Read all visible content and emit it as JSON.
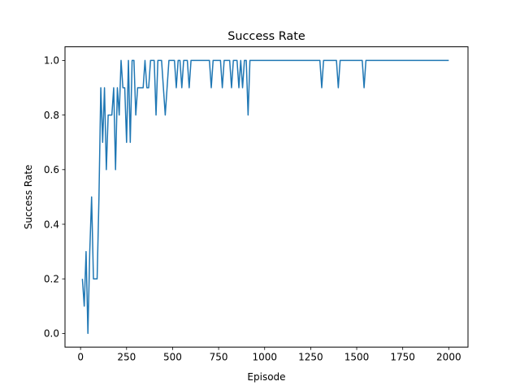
{
  "chart_data": {
    "type": "line",
    "title": "Success Rate",
    "xlabel": "Episode",
    "ylabel": "Success Rate",
    "xlim": [
      -84.5,
      2104.5
    ],
    "ylim": [
      -0.05,
      1.05
    ],
    "xticks": [
      0,
      250,
      500,
      750,
      1000,
      1250,
      1500,
      1750,
      2000
    ],
    "xtick_labels": [
      "0",
      "250",
      "500",
      "750",
      "1000",
      "1250",
      "1500",
      "1750",
      "2000"
    ],
    "yticks": [
      0.0,
      0.2,
      0.4,
      0.6,
      0.8,
      1.0
    ],
    "ytick_labels": [
      "0.0",
      "0.2",
      "0.4",
      "0.6",
      "0.8",
      "1.0"
    ],
    "grid": false,
    "legend": "none",
    "series": [
      {
        "color": "#1f77b4",
        "x": [
          10,
          20,
          30,
          40,
          50,
          60,
          70,
          80,
          90,
          100,
          110,
          120,
          130,
          140,
          150,
          160,
          170,
          180,
          190,
          200,
          210,
          220,
          230,
          240,
          250,
          260,
          270,
          280,
          290,
          300,
          310,
          320,
          330,
          340,
          350,
          360,
          370,
          380,
          390,
          400,
          410,
          420,
          430,
          440,
          450,
          460,
          470,
          480,
          490,
          500,
          510,
          520,
          530,
          540,
          550,
          560,
          570,
          580,
          590,
          600,
          650,
          700,
          710,
          720,
          760,
          770,
          780,
          800,
          810,
          820,
          830,
          840,
          850,
          860,
          870,
          880,
          890,
          900,
          910,
          920,
          1000,
          1100,
          1200,
          1300,
          1310,
          1320,
          1390,
          1400,
          1410,
          1450,
          1500,
          1530,
          1540,
          1550,
          1600,
          1700,
          1800,
          1900,
          2000
        ],
        "y": [
          0.2,
          0.1,
          0.3,
          0.0,
          0.3,
          0.5,
          0.2,
          0.2,
          0.2,
          0.5,
          0.9,
          0.7,
          0.9,
          0.6,
          0.8,
          0.8,
          0.8,
          0.9,
          0.6,
          0.9,
          0.8,
          1.0,
          0.9,
          0.9,
          0.7,
          1.0,
          0.7,
          1.0,
          1.0,
          0.8,
          0.9,
          0.9,
          0.9,
          0.9,
          1.0,
          0.9,
          0.9,
          1.0,
          1.0,
          1.0,
          0.8,
          1.0,
          1.0,
          1.0,
          0.9,
          0.8,
          0.9,
          1.0,
          1.0,
          1.0,
          1.0,
          0.9,
          1.0,
          1.0,
          0.9,
          1.0,
          1.0,
          1.0,
          0.9,
          1.0,
          1.0,
          1.0,
          0.9,
          1.0,
          1.0,
          0.9,
          1.0,
          1.0,
          1.0,
          0.9,
          1.0,
          1.0,
          1.0,
          0.9,
          1.0,
          0.9,
          1.0,
          1.0,
          0.8,
          1.0,
          1.0,
          1.0,
          1.0,
          1.0,
          0.9,
          1.0,
          1.0,
          0.9,
          1.0,
          1.0,
          1.0,
          1.0,
          0.9,
          1.0,
          1.0,
          1.0,
          1.0,
          1.0,
          1.0
        ]
      }
    ]
  }
}
